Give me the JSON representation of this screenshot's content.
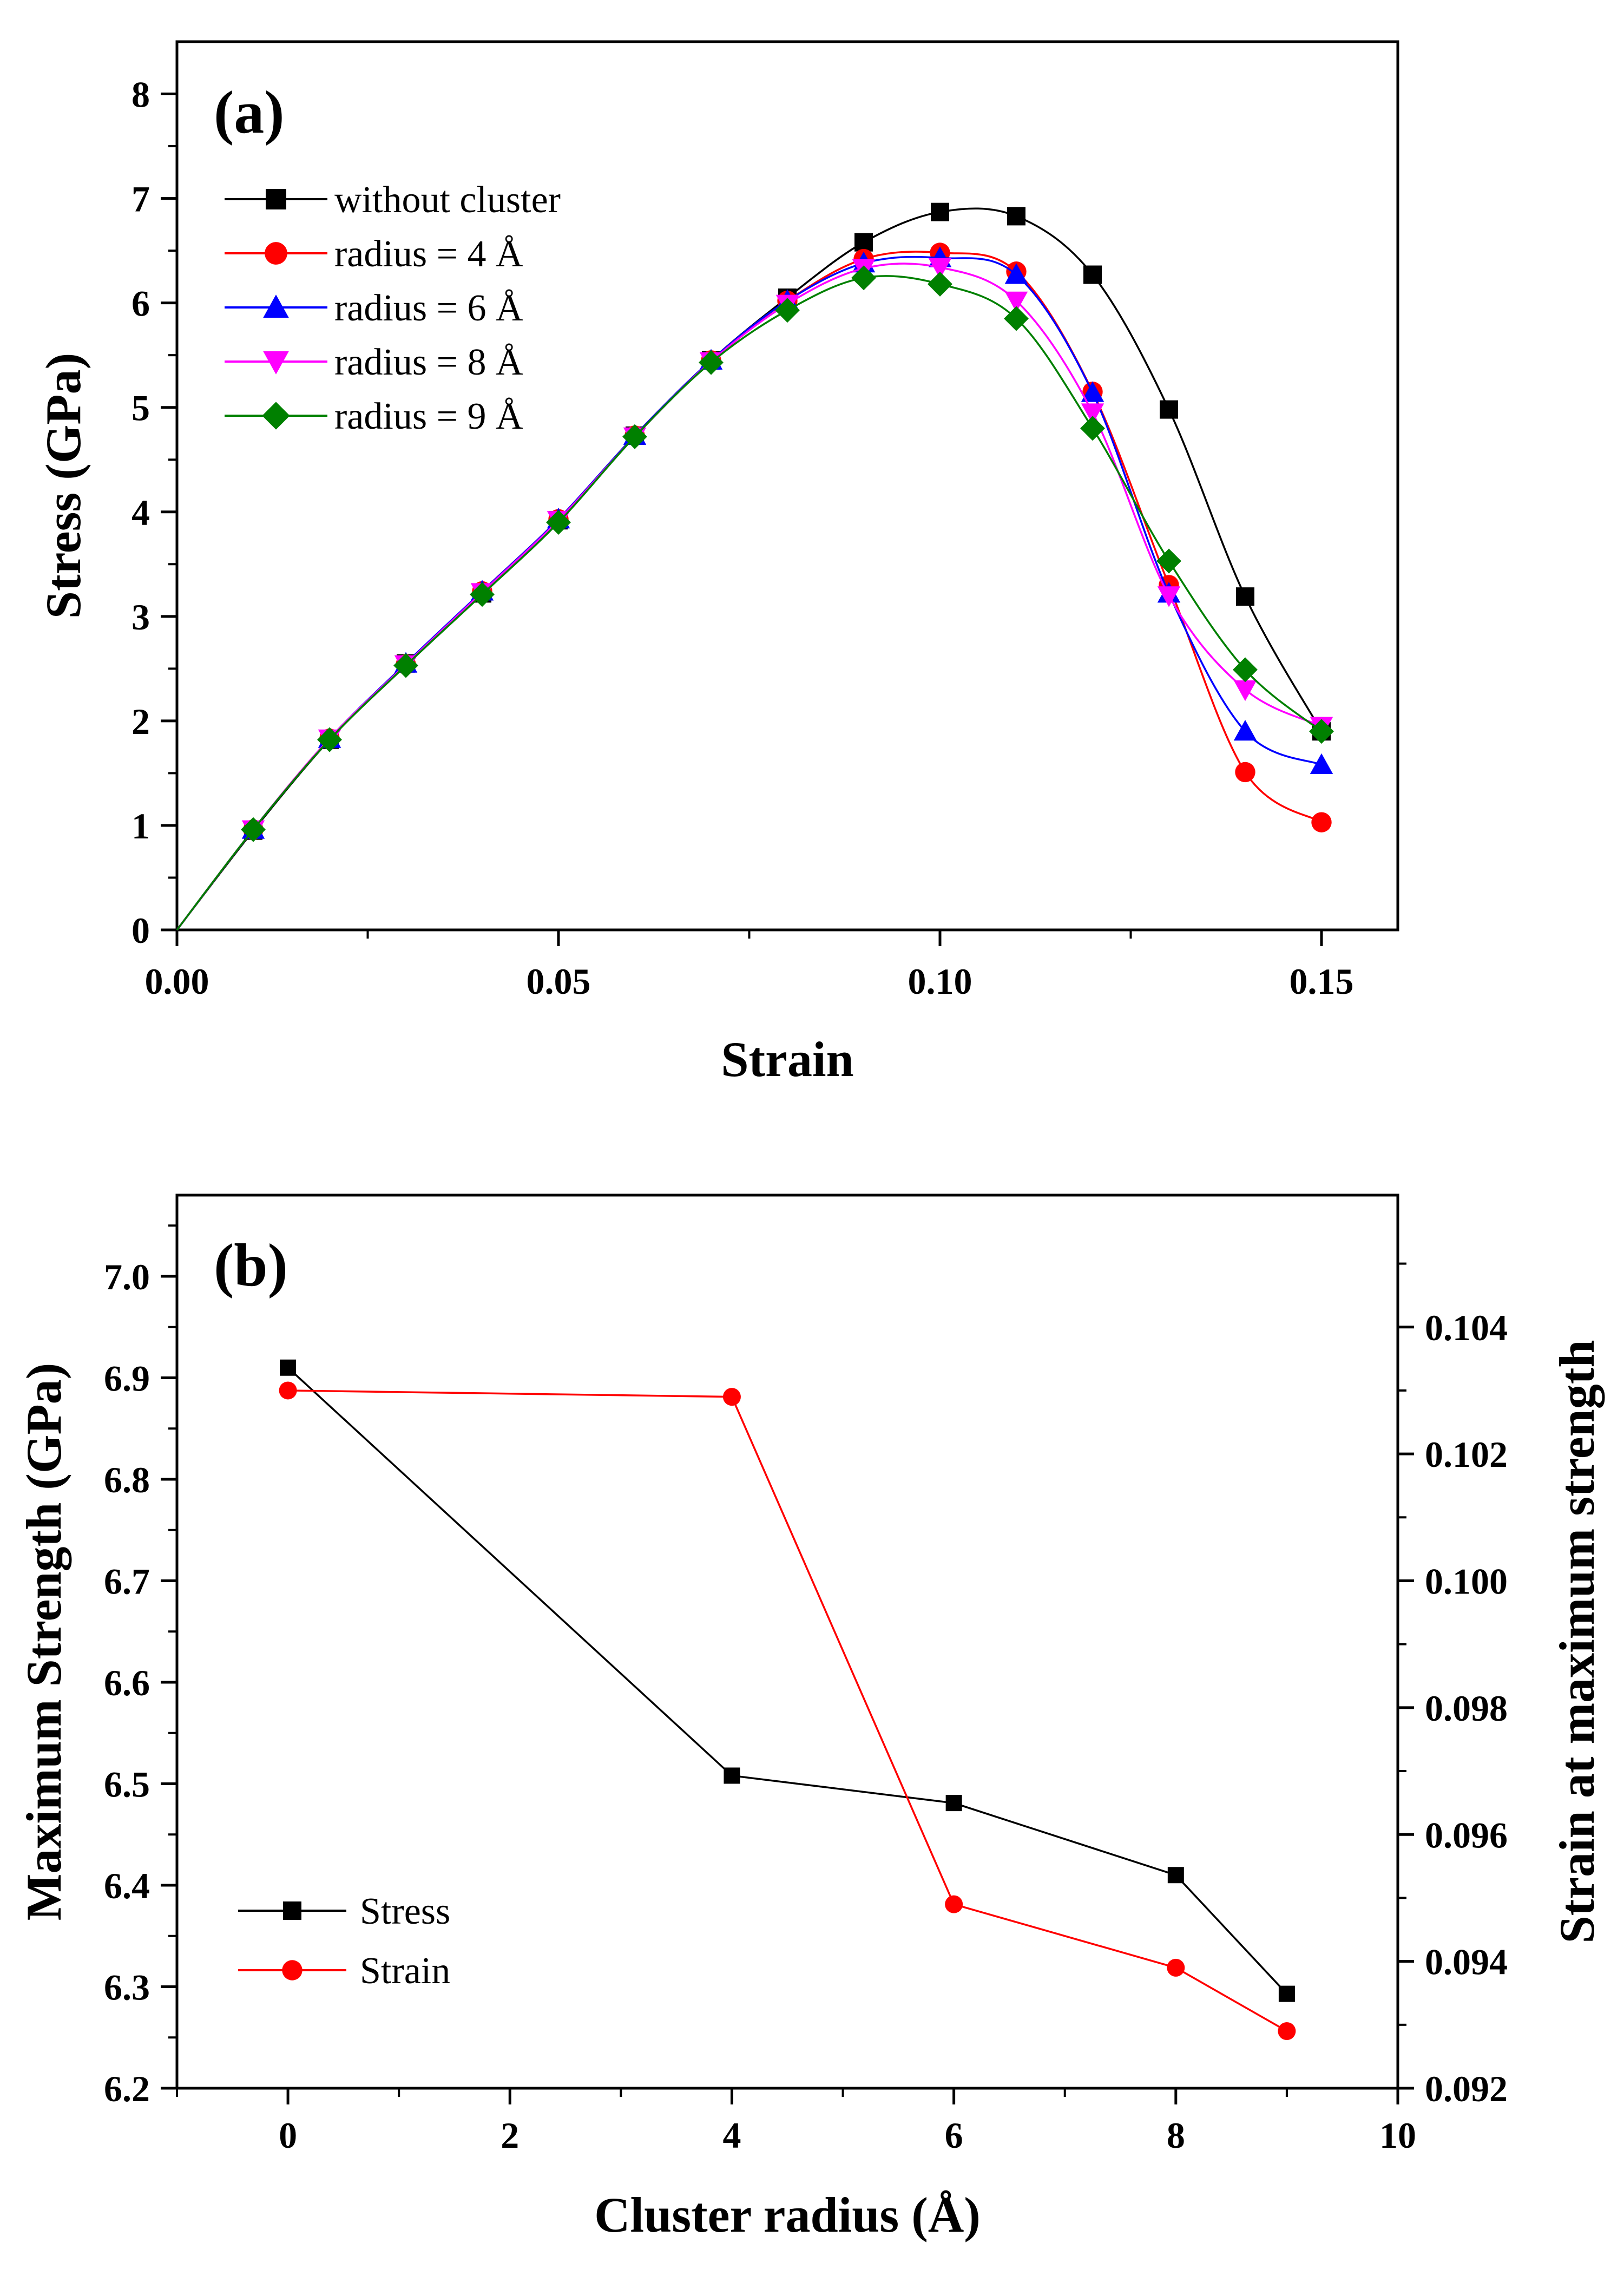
{
  "chart_data": [
    {
      "type": "line",
      "panel_label": "(a)",
      "xlabel": "Strain",
      "ylabel": "Stress (GPa)",
      "xlim": [
        0.0,
        0.16
      ],
      "ylim": [
        0,
        8.5
      ],
      "xticks": [
        0.0,
        0.05,
        0.1,
        0.15
      ],
      "xtick_labels": [
        "0.00",
        "0.05",
        "0.10",
        "0.15"
      ],
      "yticks": [
        0,
        1,
        2,
        3,
        4,
        5,
        6,
        7,
        8
      ],
      "ytick_labels": [
        "0",
        "1",
        "2",
        "3",
        "4",
        "5",
        "6",
        "7",
        "8"
      ],
      "legend_position": "upper-left",
      "x": [
        0.0,
        0.01,
        0.02,
        0.03,
        0.04,
        0.05,
        0.06,
        0.07,
        0.08,
        0.09,
        0.1,
        0.11,
        0.12,
        0.13,
        0.14,
        0.15
      ],
      "series": [
        {
          "name": "without cluster",
          "color": "#000000",
          "marker": "square",
          "values": [
            0,
            0.95,
            1.82,
            2.55,
            3.22,
            3.92,
            4.73,
            5.45,
            6.05,
            6.58,
            6.87,
            6.83,
            6.27,
            4.98,
            3.19,
            1.9
          ]
        },
        {
          "name": "radius = 4 Å",
          "color": "#ff0000",
          "marker": "circle",
          "values": [
            0,
            0.96,
            1.83,
            2.54,
            3.24,
            3.93,
            4.73,
            5.45,
            6.02,
            6.42,
            6.48,
            6.3,
            5.15,
            3.3,
            1.51,
            1.03
          ]
        },
        {
          "name": "radius = 6 Å",
          "color": "#0000ff",
          "marker": "triangle-up",
          "values": [
            0,
            0.96,
            1.83,
            2.55,
            3.24,
            3.93,
            4.73,
            5.45,
            6.02,
            6.38,
            6.43,
            6.27,
            5.14,
            3.22,
            1.9,
            1.58
          ]
        },
        {
          "name": "radius = 8 Å",
          "color": "#ff00ff",
          "marker": "triangle-down",
          "values": [
            0,
            0.96,
            1.83,
            2.54,
            3.23,
            3.92,
            4.72,
            5.44,
            5.99,
            6.33,
            6.34,
            6.02,
            4.95,
            3.2,
            2.3,
            1.95
          ]
        },
        {
          "name": "radius = 9 Å",
          "color": "#008000",
          "marker": "diamond",
          "values": [
            0,
            0.96,
            1.82,
            2.53,
            3.21,
            3.9,
            4.72,
            5.43,
            5.93,
            6.24,
            6.18,
            5.85,
            4.8,
            3.53,
            2.49,
            1.9
          ]
        }
      ]
    },
    {
      "type": "line",
      "panel_label": "(b)",
      "xlabel": "Cluster radius (Å)",
      "ylabel": "Maximum Strength (GPa)",
      "y2label": "Strain at maximum strength",
      "xlim": [
        -1,
        10
      ],
      "ylim": [
        6.2,
        7.08
      ],
      "y2lim": [
        0.092,
        0.10608
      ],
      "xticks": [
        0,
        2,
        4,
        6,
        8,
        10
      ],
      "xtick_labels": [
        "0",
        "2",
        "4",
        "6",
        "8",
        "10"
      ],
      "yticks": [
        6.2,
        6.3,
        6.4,
        6.5,
        6.6,
        6.7,
        6.8,
        6.9,
        7.0
      ],
      "ytick_labels": [
        "6.2",
        "6.3",
        "6.4",
        "6.5",
        "6.6",
        "6.7",
        "6.8",
        "6.9",
        "7.0"
      ],
      "y2ticks": [
        0.092,
        0.094,
        0.096,
        0.098,
        0.1,
        0.102,
        0.104
      ],
      "y2tick_labels": [
        "0.092",
        "0.094",
        "0.096",
        "0.098",
        "0.100",
        "0.102",
        "0.104"
      ],
      "legend_position": "lower-left",
      "x": [
        0,
        4,
        6,
        8,
        9
      ],
      "series": [
        {
          "name": "Stress",
          "color": "#000000",
          "marker": "square",
          "axis": "left",
          "values": [
            6.91,
            6.508,
            6.481,
            6.41,
            6.293
          ]
        },
        {
          "name": "Strain",
          "color": "#ff0000",
          "marker": "circle",
          "axis": "right",
          "values": [
            0.103,
            0.1029,
            0.0949,
            0.0939,
            0.0929
          ]
        }
      ]
    }
  ]
}
